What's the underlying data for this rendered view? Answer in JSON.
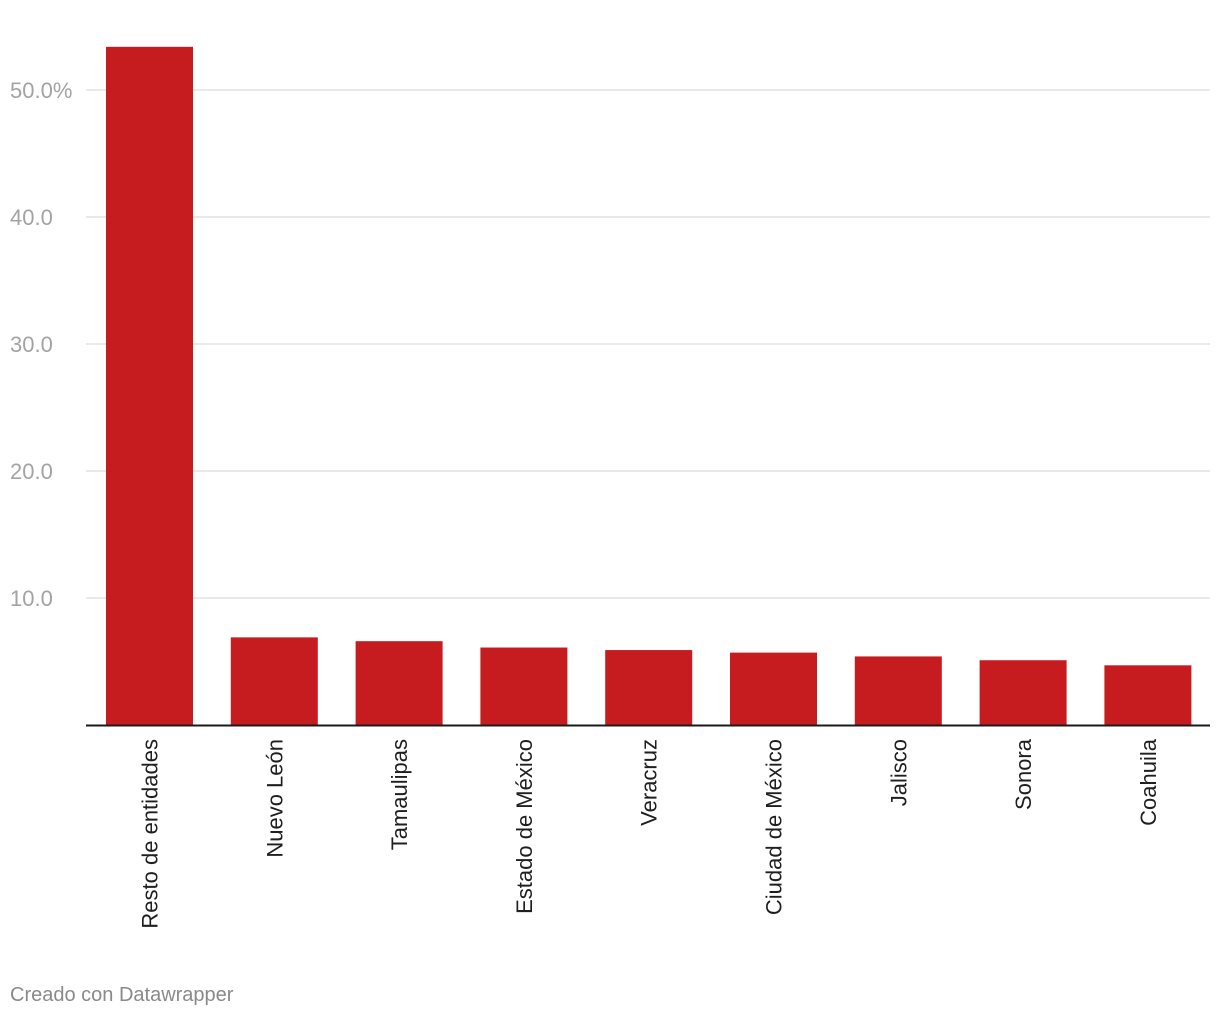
{
  "chart_data": {
    "type": "bar",
    "categories": [
      "Resto de entidades",
      "Nuevo León",
      "Tamaulipas",
      "Estado de México",
      "Veracruz",
      "Ciudad de México",
      "Jalisco",
      "Sonora",
      "Coahuila"
    ],
    "values": [
      53.4,
      6.9,
      6.6,
      6.1,
      5.9,
      5.7,
      5.4,
      5.1,
      4.7
    ],
    "ylim": [
      0,
      55
    ],
    "yticks": [
      10,
      20,
      30,
      40,
      50
    ],
    "ytick_labels": [
      "10.0",
      "20.0",
      "30.0",
      "40.0",
      "50.0%"
    ],
    "bar_color": "#c71c1f",
    "grid": true,
    "legend": "none"
  },
  "footer": {
    "credit": "Creado con Datawrapper"
  }
}
